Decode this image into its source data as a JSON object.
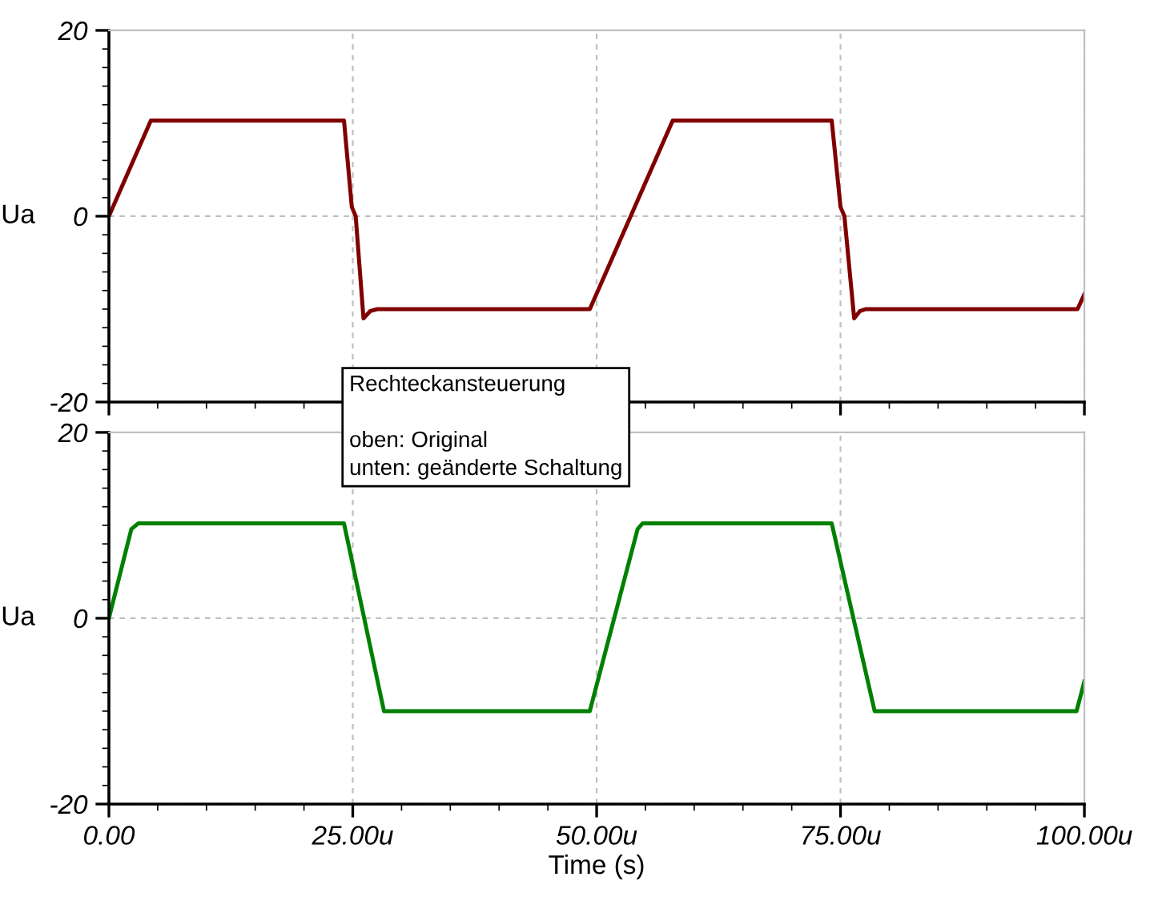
{
  "chart_data": [
    {
      "type": "line",
      "ylabel": "Ua",
      "xlim": [
        0,
        100
      ],
      "ylim": [
        -20,
        20
      ],
      "yticks": [
        -20,
        0,
        20
      ],
      "grid": true,
      "tick_labels": "y",
      "annotations": [
        "Rechteckansteuerung\n\noben: Original\nunten: geänderte Schaltung"
      ],
      "series": [
        {
          "color": "#800000",
          "x": [
            0,
            4.3,
            24.1,
            24.9,
            25.3,
            26.1,
            26.8,
            27.5,
            49.3,
            57.8,
            74.1,
            75.0,
            75.4,
            76.4,
            77.0,
            77.6,
            99.3,
            100
          ],
          "values": [
            0,
            10.3,
            10.3,
            1,
            0,
            -11,
            -10.2,
            -10,
            -10,
            10.3,
            10.3,
            1,
            0,
            -11,
            -10.2,
            -10,
            -10,
            -8.4
          ]
        }
      ]
    },
    {
      "type": "line",
      "ylabel": "Ua",
      "xlabel": "Time (s)",
      "xlim": [
        0,
        100
      ],
      "ylim": [
        -20,
        20
      ],
      "xticks": [
        {
          "value": 0,
          "label": "0.00"
        },
        {
          "value": 25,
          "label": "25.00u"
        },
        {
          "value": 50,
          "label": "50.00u"
        },
        {
          "value": 75,
          "label": "75.00u"
        },
        {
          "value": 100,
          "label": "100.00u"
        }
      ],
      "yticks": [
        -20,
        0,
        20
      ],
      "grid": true,
      "series": [
        {
          "color": "#008000",
          "x": [
            0,
            2.3,
            3.0,
            24.1,
            28.2,
            49.3,
            54.2,
            54.7,
            74.1,
            78.5,
            99.2,
            100
          ],
          "values": [
            0,
            9.6,
            10.2,
            10.2,
            -10,
            -10,
            9.6,
            10.2,
            10.2,
            -10,
            -10,
            -6.8
          ]
        }
      ]
    }
  ]
}
